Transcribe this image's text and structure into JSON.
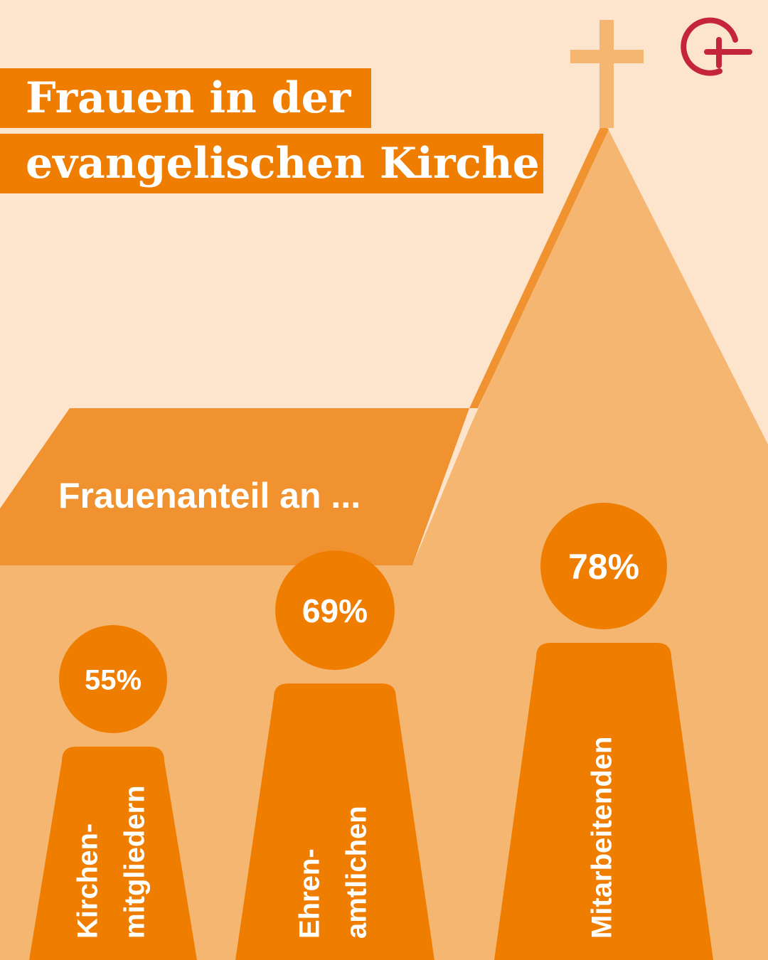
{
  "title": {
    "line1": "Frauen in der",
    "line2": "evangelischen Kirche"
  },
  "subtitle": "Frauenanteil an ...",
  "colors": {
    "background": "#FDE4CC",
    "church_light": "#F5B672",
    "church_mid": "#F0922F",
    "accent": "#EF7D00",
    "logo": "#C4253A"
  },
  "logo": {
    "icon": "circle-plus-logo-icon"
  },
  "chart_data": {
    "type": "bar",
    "title": "Frauen in der evangelischen Kirche",
    "subtitle": "Frauenanteil an ...",
    "unit": "%",
    "categories": [
      {
        "id": "kirchenmitglieder",
        "label_lines": [
          "Kirchen-",
          "mitgliedern"
        ],
        "value": 55,
        "label": "55%"
      },
      {
        "id": "ehrenamtliche",
        "label_lines": [
          "Ehren-",
          "amtlichen"
        ],
        "value": 69,
        "label": "69%"
      },
      {
        "id": "mitarbeitende",
        "label_lines": [
          "Mitarbeitenden"
        ],
        "value": 78,
        "label": "78%"
      }
    ]
  }
}
